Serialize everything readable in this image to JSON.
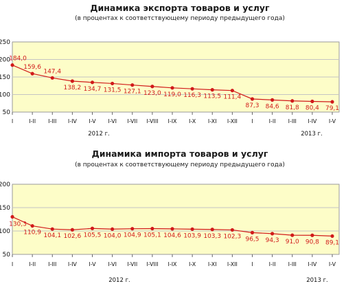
{
  "chart_data": [
    {
      "type": "line",
      "title": "Динамика экспорта товаров и услуг",
      "subtitle": "(в процентах к соответствующему периоду предыдущего года)",
      "categories": [
        "I",
        "I-II",
        "I-III",
        "I-IV",
        "I-V",
        "I-VI",
        "I-VII",
        "I-VIII",
        "I-IX",
        "I-X",
        "I-XI",
        "I-XII",
        "I",
        "I-II",
        "I-III",
        "I-IV",
        "I-V"
      ],
      "values": [
        184.0,
        159.6,
        147.4,
        138.2,
        134.7,
        131.5,
        127.1,
        123.0,
        119.0,
        116.3,
        113.5,
        111.4,
        87.3,
        84.6,
        81.8,
        80.4,
        79.1
      ],
      "labels": [
        "184,0",
        "159,6",
        "147,4",
        "138,2",
        "134,7",
        "131,5",
        "127,1",
        "123,0",
        "119,0",
        "116,3",
        "113,5",
        "111,4",
        "87,3",
        "84,6",
        "81,8",
        "80,4",
        "79,1"
      ],
      "yticks": [
        "50",
        "100",
        "150",
        "200",
        "250"
      ],
      "ylim": [
        50,
        250
      ],
      "years": [
        "2012 г.",
        "2013 г."
      ],
      "grid": true,
      "colors": {
        "line": "#d11a1a",
        "plot_bg": "#fdfdc8",
        "grid": "#c4c4c4"
      }
    },
    {
      "type": "line",
      "title": "Динамика импорта товаров и услуг",
      "subtitle": "(в процентах к соответствующему периоду предыдущего года)",
      "categories": [
        "I",
        "I-II",
        "I-III",
        "I-IV",
        "I-V",
        "I-VI",
        "I-VII",
        "I-VIII",
        "I-IX",
        "I-X",
        "I-XI",
        "I-XII",
        "I",
        "I-II",
        "I-III",
        "I-IV",
        "I-V"
      ],
      "values": [
        130.3,
        110.9,
        104.1,
        102.6,
        105.5,
        104.0,
        104.9,
        105.1,
        104.6,
        103.9,
        103.3,
        102.3,
        96.5,
        94.3,
        91.0,
        90.8,
        89.1
      ],
      "labels": [
        "130,3",
        "110,9",
        "104,1",
        "102,6",
        "105,5",
        "104,0",
        "104,9",
        "105,1",
        "104,6",
        "103,9",
        "103,3",
        "102,3",
        "96,5",
        "94,3",
        "91,0",
        "90,8",
        "89,1"
      ],
      "yticks": [
        "50",
        "100",
        "150",
        "200"
      ],
      "ylim": [
        50,
        200
      ],
      "years": [
        "2012 г.",
        "2013 г."
      ],
      "grid": true,
      "colors": {
        "line": "#d11a1a",
        "plot_bg": "#fdfdc8",
        "grid": "#c4c4c4"
      }
    }
  ]
}
